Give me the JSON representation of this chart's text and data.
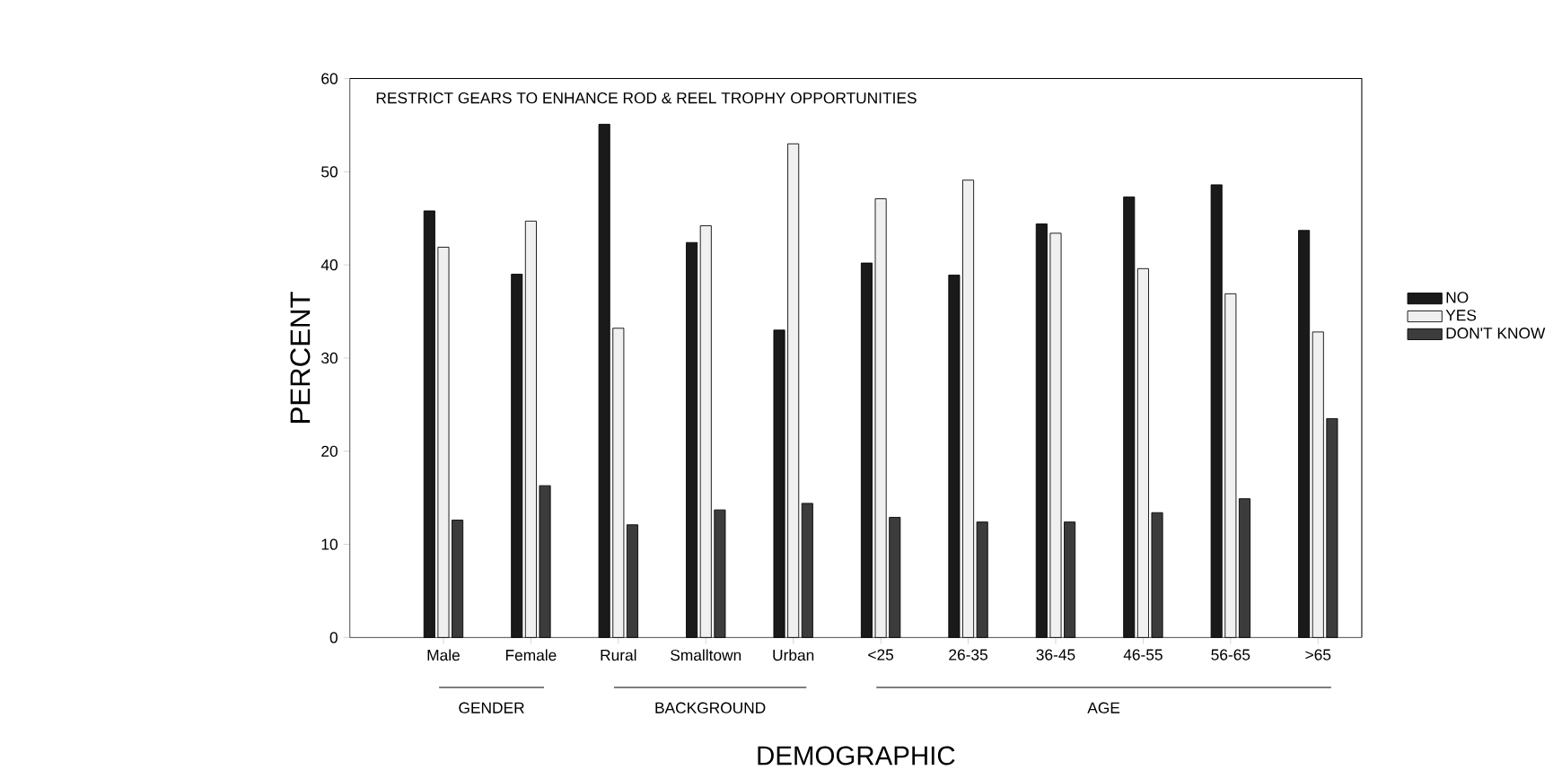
{
  "chart_data": {
    "type": "bar",
    "title": "RESTRICT GEARS TO ENHANCE ROD & REEL TROPHY OPPORTUNITIES",
    "xlabel": "DEMOGRAPHIC",
    "ylabel": "PERCENT",
    "categories": [
      "Male",
      "Female",
      "Rural",
      "Smalltown",
      "Urban",
      "<25",
      "26-35",
      "36-45",
      "46-55",
      "56-65",
      ">65"
    ],
    "series": [
      {
        "name": "NO",
        "color": "#1a1a1a",
        "values": [
          45.8,
          39.0,
          55.1,
          42.4,
          33.0,
          40.2,
          38.9,
          44.4,
          47.3,
          48.6,
          43.7
        ]
      },
      {
        "name": "YES",
        "color": "#f0f0f0",
        "values": [
          41.9,
          44.7,
          33.2,
          44.2,
          53.0,
          47.1,
          49.1,
          43.4,
          39.6,
          36.9,
          32.8
        ]
      },
      {
        "name": "DON'T KNOW",
        "color": "#3c3c3c",
        "values": [
          12.6,
          16.3,
          12.1,
          13.7,
          14.4,
          12.9,
          12.4,
          12.4,
          13.4,
          14.9,
          23.5
        ]
      }
    ],
    "annotations": [
      "GENDER",
      "BACKGROUND",
      "AGE"
    ],
    "ylim": [
      0,
      60
    ],
    "yticks": [
      0,
      10,
      20,
      30,
      40,
      50,
      60
    ],
    "grid": false,
    "legend": "right"
  }
}
